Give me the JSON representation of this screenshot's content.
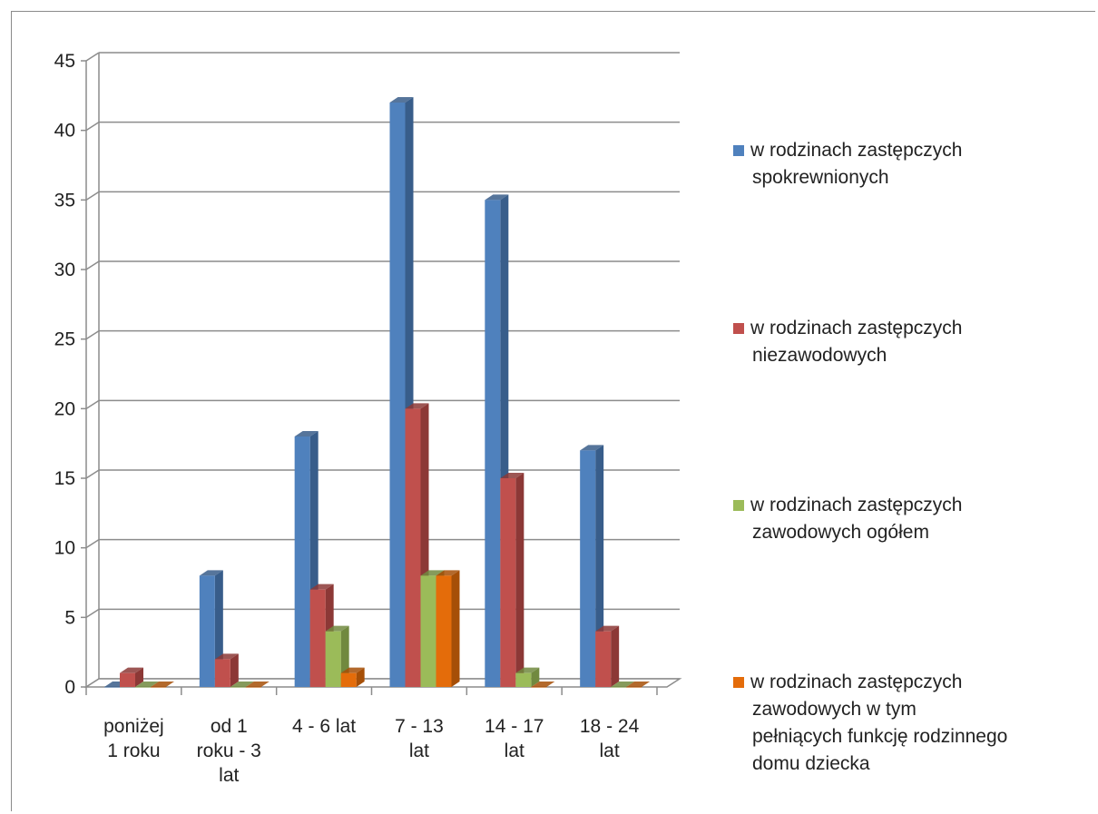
{
  "chart_data": {
    "type": "bar",
    "title": "",
    "xlabel": "",
    "ylabel": "",
    "ylim": [
      0,
      45
    ],
    "yticks": [
      "0",
      "5",
      "10",
      "15",
      "20",
      "25",
      "30",
      "35",
      "40",
      "45"
    ],
    "grid": true,
    "legend_position": "right",
    "categories": [
      [
        "poniżej",
        "1 roku"
      ],
      [
        "od 1",
        "roku - 3",
        "lat"
      ],
      [
        "4 - 6 lat"
      ],
      [
        "7 - 13",
        "lat"
      ],
      [
        "14 - 17",
        "lat"
      ],
      [
        "18 - 24",
        "lat"
      ]
    ],
    "series": [
      {
        "name": [
          "w rodzinach zastępczych",
          "spokrewnionych"
        ],
        "color": "#4F81BD",
        "side": "#385D8A",
        "values": [
          0,
          8,
          18,
          42,
          35,
          17
        ]
      },
      {
        "name": [
          "w rodzinach zastępczych",
          "niezawodowych"
        ],
        "color": "#C0504D",
        "side": "#8C3836",
        "values": [
          1,
          2,
          7,
          20,
          15,
          4
        ]
      },
      {
        "name": [
          "w rodzinach zastępczych",
          "zawodowych ogółem"
        ],
        "color": "#9BBB59",
        "side": "#71893F",
        "values": [
          0,
          0,
          4,
          8,
          1,
          0
        ]
      },
      {
        "name": [
          "w rodzinach zastępczych",
          "zawodowych w tym",
          "pełniących funkcję rodzinnego",
          "domu dziecka"
        ],
        "color": "#E46C0A",
        "side": "#A64F07",
        "values": [
          0,
          0,
          1,
          8,
          0,
          0
        ]
      }
    ]
  }
}
